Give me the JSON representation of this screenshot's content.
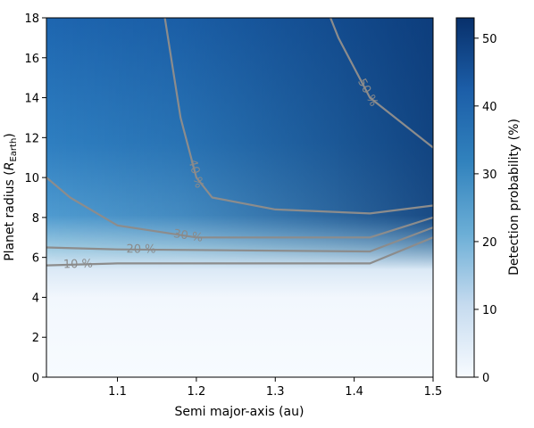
{
  "chart_data": {
    "type": "heatmap",
    "title": "",
    "xlabel": "Semi major-axis (au)",
    "ylabel_main": "Planet radius (",
    "ylabel_symbol": "R",
    "ylabel_sub": "Earth",
    "ylabel_end": ")",
    "xlim": [
      1.01,
      1.5
    ],
    "ylim": [
      0,
      18
    ],
    "xticks": [
      1.1,
      1.2,
      1.3,
      1.4,
      1.5
    ],
    "xtick_labels": [
      "1.1",
      "1.2",
      "1.3",
      "1.4",
      "1.5"
    ],
    "yticks": [
      0,
      2,
      4,
      6,
      8,
      10,
      12,
      14,
      16,
      18
    ],
    "ytick_labels": [
      "0",
      "2",
      "4",
      "6",
      "8",
      "10",
      "12",
      "14",
      "16",
      "18"
    ],
    "colorbar": {
      "label": "Detection probability (%)",
      "range": [
        0,
        53
      ],
      "ticks": [
        0,
        10,
        20,
        30,
        40,
        50
      ],
      "tick_labels": [
        "0",
        "10",
        "20",
        "30",
        "40",
        "50"
      ],
      "color_low": "#f7fbff",
      "color_high": "#08306b"
    },
    "contours": [
      {
        "level": 10,
        "label": "10 %",
        "label_at": [
          1.05,
          5.7
        ],
        "points": [
          [
            1.01,
            5.6
          ],
          [
            1.1,
            5.7
          ],
          [
            1.42,
            5.7
          ],
          [
            1.5,
            7.0
          ]
        ]
      },
      {
        "level": 20,
        "label": "20 %",
        "label_at": [
          1.13,
          6.4
        ],
        "points": [
          [
            1.01,
            6.5
          ],
          [
            1.1,
            6.4
          ],
          [
            1.42,
            6.3
          ],
          [
            1.5,
            7.5
          ]
        ]
      },
      {
        "level": 30,
        "label": "30 %",
        "label_at": [
          1.19,
          7.2
        ],
        "points": [
          [
            1.01,
            10.0
          ],
          [
            1.04,
            9.0
          ],
          [
            1.1,
            7.6
          ],
          [
            1.2,
            7.0
          ],
          [
            1.42,
            7.0
          ],
          [
            1.5,
            8.0
          ]
        ]
      },
      {
        "level": 40,
        "label": "40 %",
        "label_at": [
          1.2,
          10.2
        ],
        "points": [
          [
            1.16,
            18.0
          ],
          [
            1.18,
            13.0
          ],
          [
            1.2,
            10.0
          ],
          [
            1.22,
            9.0
          ],
          [
            1.3,
            8.4
          ],
          [
            1.42,
            8.2
          ],
          [
            1.5,
            8.6
          ]
        ]
      },
      {
        "level": 50,
        "label": "50 %",
        "label_at": [
          1.4,
          13.9
        ],
        "points": [
          [
            1.37,
            18.0
          ],
          [
            1.38,
            17.0
          ],
          [
            1.42,
            14.0
          ],
          [
            1.5,
            11.5
          ]
        ]
      }
    ],
    "grid": false
  }
}
